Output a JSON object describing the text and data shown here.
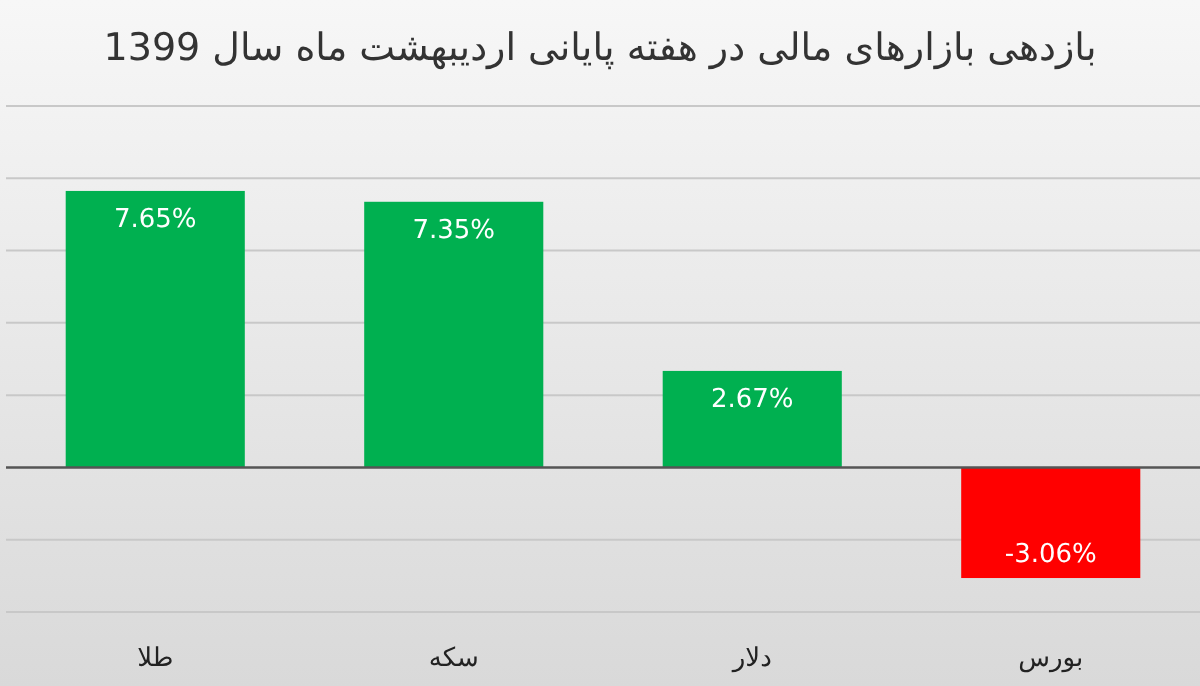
{
  "chart_data": {
    "type": "bar",
    "title": "بازدهی بازارهای مالی در هفته پایانی اردیبهشت ماه سال 1399",
    "categories": [
      "طلا",
      "سکه",
      "دلار",
      "بورس"
    ],
    "values": [
      7.65,
      7.35,
      2.67,
      -3.06
    ],
    "colors": [
      "#00b050",
      "#00b050",
      "#00b050",
      "#ff0000"
    ],
    "value_labels": [
      "7.65%",
      "7.35%",
      "2.67%",
      "-3.06%"
    ],
    "ylim": [
      -4,
      10
    ],
    "yticks": [
      {
        "value": -4,
        "label": null
      },
      {
        "value": -2,
        "label": null
      },
      {
        "value": 0,
        "label": null
      },
      {
        "value": 2,
        "label": null
      },
      {
        "value": 4,
        "label": null
      },
      {
        "value": 6,
        "label": null
      },
      {
        "value": 8,
        "label": null
      },
      {
        "value": 10,
        "label": null
      }
    ],
    "grid": "y"
  }
}
